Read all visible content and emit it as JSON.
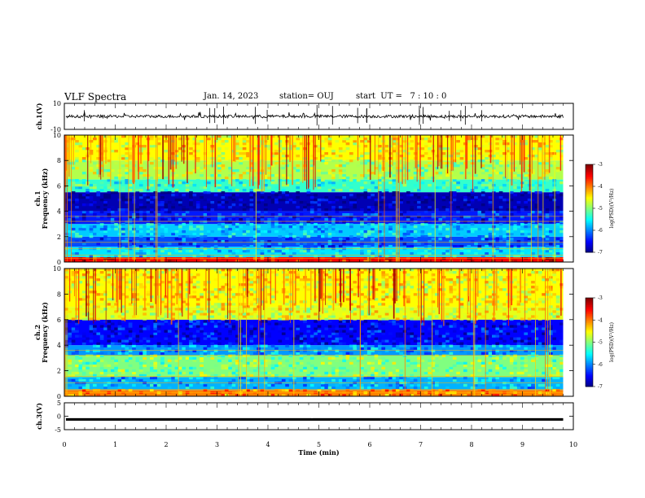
{
  "header": {
    "title": "VLF Spectra",
    "date": "Jan. 14, 2023",
    "station": "station= OUJ",
    "start": "start  UT =   7 : 10 : 0"
  },
  "chart_data": [
    {
      "type": "line",
      "panel": "ch1-waveform",
      "ylabel": "ch.1(V)",
      "ylim": [
        -10,
        10
      ],
      "yticks": [
        "10",
        "-10"
      ],
      "xlim": [
        0,
        10
      ],
      "trace_color": "#000000"
    },
    {
      "type": "heatmap",
      "panel": "ch1-spectrogram",
      "ylabel": "ch.1\nFrequency (kHz)",
      "ylim": [
        0,
        10
      ],
      "yticks": [
        "0",
        "2",
        "4",
        "6",
        "8",
        "10"
      ],
      "xlim": [
        0,
        10
      ],
      "data_end_min": 9.8,
      "colorbar": {
        "label": "log(PSD)(V²/Hz)",
        "range": [
          -7,
          -3
        ],
        "ticks": [
          "-3",
          "-4",
          "-5",
          "-6",
          "-7"
        ]
      },
      "bands_khz_logpsd": [
        [
          0,
          0.4,
          -3.5
        ],
        [
          0.4,
          1.2,
          -5.6
        ],
        [
          1.2,
          2.0,
          -6.2
        ],
        [
          2.0,
          3.0,
          -5.7
        ],
        [
          3.0,
          4.0,
          -6.4
        ],
        [
          4.0,
          5.5,
          -6.8
        ],
        [
          5.5,
          6.5,
          -5.3
        ],
        [
          6.5,
          8.0,
          -4.8
        ],
        [
          8.0,
          10.0,
          -4.5
        ]
      ]
    },
    {
      "type": "heatmap",
      "panel": "ch2-spectrogram",
      "ylabel": "ch.2\nFrequency (kHz)",
      "ylim": [
        0,
        10
      ],
      "yticks": [
        "0",
        "2",
        "4",
        "6",
        "8",
        "10"
      ],
      "xlim": [
        0,
        10
      ],
      "data_end_min": 9.8,
      "colorbar": {
        "label": "log(PSD)(V²/Hz)",
        "range": [
          -7,
          -3
        ],
        "ticks": [
          "-3",
          "-4",
          "-5",
          "-6",
          "-7"
        ]
      },
      "bands_khz_logpsd": [
        [
          0,
          0.5,
          -4.0
        ],
        [
          0.5,
          1.5,
          -5.8
        ],
        [
          1.5,
          3.2,
          -5.0
        ],
        [
          3.2,
          4.0,
          -5.9
        ],
        [
          4.0,
          6.0,
          -6.5
        ],
        [
          6.0,
          7.0,
          -4.6
        ],
        [
          7.0,
          10.0,
          -4.5
        ]
      ]
    },
    {
      "type": "line",
      "panel": "ch3-waveform",
      "ylabel": "ch.3(V)",
      "ylim": [
        -5,
        5
      ],
      "yticks": [
        "5",
        "0",
        "-5"
      ],
      "xlim": [
        0,
        10
      ],
      "xticks": [
        "0",
        "1",
        "2",
        "3",
        "4",
        "5",
        "6",
        "7",
        "8",
        "9",
        "10"
      ],
      "xlabel": "Time (min)",
      "trace_level_v": -1.2,
      "trace_color": "#000000"
    }
  ]
}
